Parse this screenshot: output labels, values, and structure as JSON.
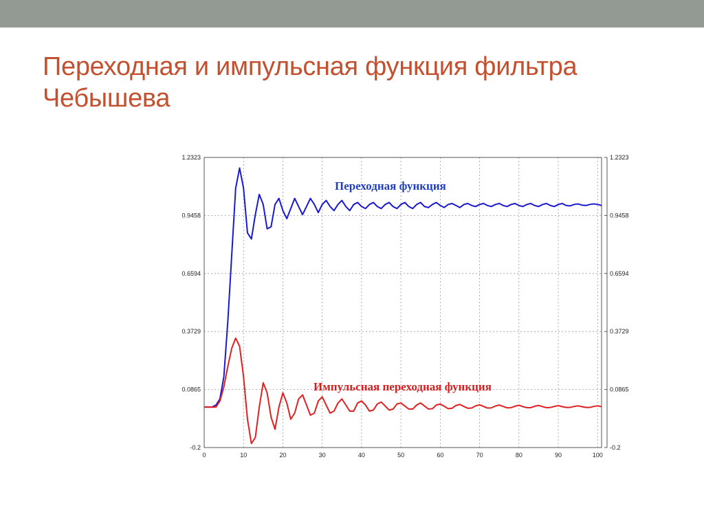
{
  "slide": {
    "title": "Переходная и импульсная функция фильтра Чебышева",
    "accent_color": "#c3502e",
    "top_bar_color": "#939a94"
  },
  "chart_data": {
    "type": "line",
    "title": "",
    "xlabel": "",
    "ylabel": "",
    "xlim": [
      0,
      100
    ],
    "ylim": [
      -0.2,
      1.2323
    ],
    "x_ticks": [
      0,
      10,
      20,
      30,
      40,
      50,
      60,
      70,
      80,
      90,
      100
    ],
    "y_tick_labels": [
      "1.2323",
      "0.9458",
      "0.6594",
      "0.3729",
      "0.0865",
      "-0.2"
    ],
    "y_tick_values": [
      1.2323,
      0.9458,
      0.6594,
      0.3729,
      0.0865,
      -0.2
    ],
    "grid": true,
    "annotations": [
      {
        "text": "Переходная функция",
        "series": "step",
        "color": "#1f3fbf"
      },
      {
        "text": "Импульсная переходная функция",
        "series": "impulse",
        "color": "#d42020"
      }
    ],
    "x": [
      0,
      1,
      2,
      3,
      4,
      5,
      6,
      7,
      8,
      9,
      10,
      11,
      12,
      13,
      14,
      15,
      16,
      17,
      18,
      19,
      20,
      21,
      22,
      23,
      24,
      25,
      26,
      27,
      28,
      29,
      30,
      31,
      32,
      33,
      34,
      35,
      36,
      37,
      38,
      39,
      40,
      41,
      42,
      43,
      44,
      45,
      46,
      47,
      48,
      49,
      50,
      51,
      52,
      53,
      54,
      55,
      56,
      57,
      58,
      59,
      60,
      61,
      62,
      63,
      64,
      65,
      66,
      67,
      68,
      69,
      70,
      71,
      72,
      73,
      74,
      75,
      76,
      77,
      78,
      79,
      80,
      81,
      82,
      83,
      84,
      85,
      86,
      87,
      88,
      89,
      90,
      91,
      92,
      93,
      94,
      95,
      96,
      97,
      98,
      99,
      100,
      101
    ],
    "series": [
      {
        "id": "step",
        "color": "#1818d0",
        "values": [
          0,
          0,
          0,
          0.01,
          0.04,
          0.15,
          0.42,
          0.75,
          1.08,
          1.18,
          1.08,
          0.86,
          0.83,
          0.95,
          1.05,
          1.0,
          0.88,
          0.89,
          1.0,
          1.03,
          0.97,
          0.93,
          0.98,
          1.03,
          0.99,
          0.95,
          0.99,
          1.03,
          1.0,
          0.96,
          1.0,
          1.02,
          0.99,
          0.97,
          1.0,
          1.02,
          0.99,
          0.97,
          1.0,
          1.01,
          0.99,
          0.98,
          1.0,
          1.01,
          0.99,
          0.98,
          1.0,
          1.01,
          0.99,
          0.98,
          1.0,
          1.01,
          0.99,
          0.98,
          1.0,
          1.01,
          0.99,
          0.985,
          1.0,
          1.01,
          0.995,
          0.985,
          1.0,
          1.005,
          0.995,
          0.985,
          1.0,
          1.005,
          0.995,
          0.99,
          1.0,
          1.005,
          0.995,
          0.99,
          1.0,
          1.005,
          0.995,
          0.99,
          1.0,
          1.005,
          0.995,
          0.99,
          1.0,
          1.005,
          0.995,
          0.99,
          1.0,
          1.005,
          0.995,
          0.99,
          1.0,
          1.005,
          0.995,
          0.993,
          1.0,
          1.003,
          0.997,
          0.995,
          1.0,
          1.003,
          1.0,
          0.995
        ]
      },
      {
        "id": "impulse",
        "color": "#e02020",
        "values": [
          0,
          0,
          0,
          0,
          0.03,
          0.1,
          0.2,
          0.29,
          0.34,
          0.3,
          0.15,
          -0.06,
          -0.18,
          -0.15,
          0.0,
          0.12,
          0.07,
          -0.05,
          -0.11,
          0.0,
          0.07,
          0.02,
          -0.06,
          -0.03,
          0.04,
          0.06,
          0.01,
          -0.04,
          -0.03,
          0.03,
          0.05,
          0.01,
          -0.03,
          -0.02,
          0.02,
          0.04,
          0.01,
          -0.02,
          -0.02,
          0.02,
          0.03,
          0.01,
          -0.02,
          -0.015,
          0.015,
          0.025,
          0.005,
          -0.015,
          -0.01,
          0.015,
          0.02,
          0.005,
          -0.01,
          -0.01,
          0.01,
          0.02,
          0.005,
          -0.01,
          -0.008,
          0.01,
          0.015,
          0.004,
          -0.008,
          -0.006,
          0.008,
          0.013,
          0.003,
          -0.006,
          -0.005,
          0.006,
          0.011,
          0.003,
          -0.005,
          -0.004,
          0.005,
          0.01,
          0.003,
          -0.004,
          -0.003,
          0.004,
          0.009,
          0.002,
          -0.003,
          -0.003,
          0.004,
          0.008,
          0.002,
          -0.003,
          -0.002,
          0.003,
          0.007,
          0.002,
          -0.002,
          -0.002,
          0.003,
          0.006,
          0.002,
          -0.002,
          -0.002,
          0.003,
          0.006,
          0.002
        ]
      }
    ]
  }
}
